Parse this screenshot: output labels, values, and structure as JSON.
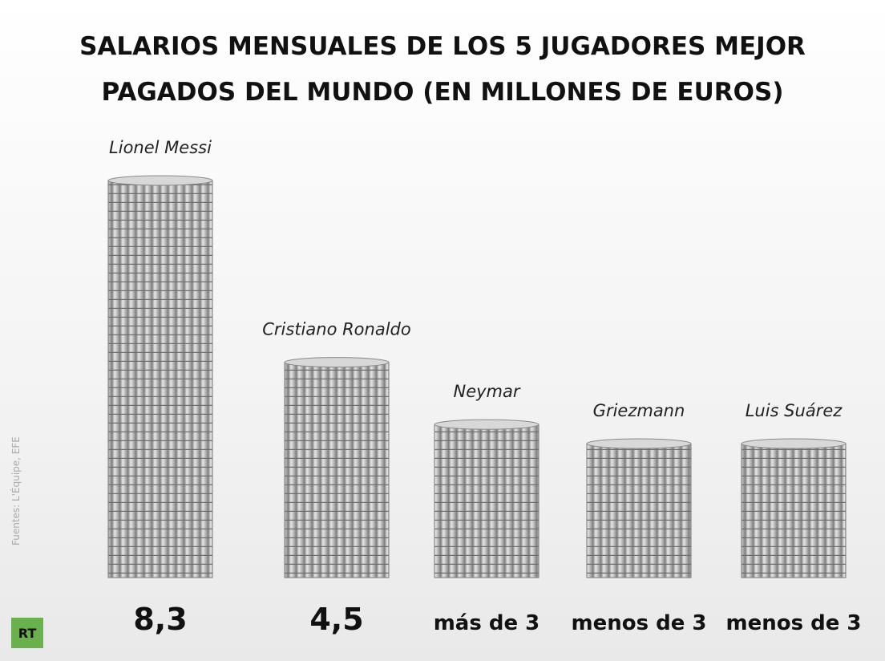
{
  "chart_data": {
    "type": "bar",
    "title": "SALARIOS MENSUALES DE LOS 5 JUGADORES MEJOR PAGADOS DEL MUNDO (EN MILLONES DE EUROS)",
    "categories": [
      "Lionel Messi",
      "Cristiano Ronaldo",
      "Neymar",
      "Griezmann",
      "Luis Suárez"
    ],
    "values": [
      8.3,
      4.5,
      3.2,
      2.8,
      2.8
    ],
    "value_labels": [
      "8,3",
      "4,5",
      "más de 3",
      "menos de 3",
      "menos de 3"
    ],
    "color": "#b9b9b9",
    "source": "Fuentes: L'Équipe, EFE",
    "logo": "RT"
  }
}
